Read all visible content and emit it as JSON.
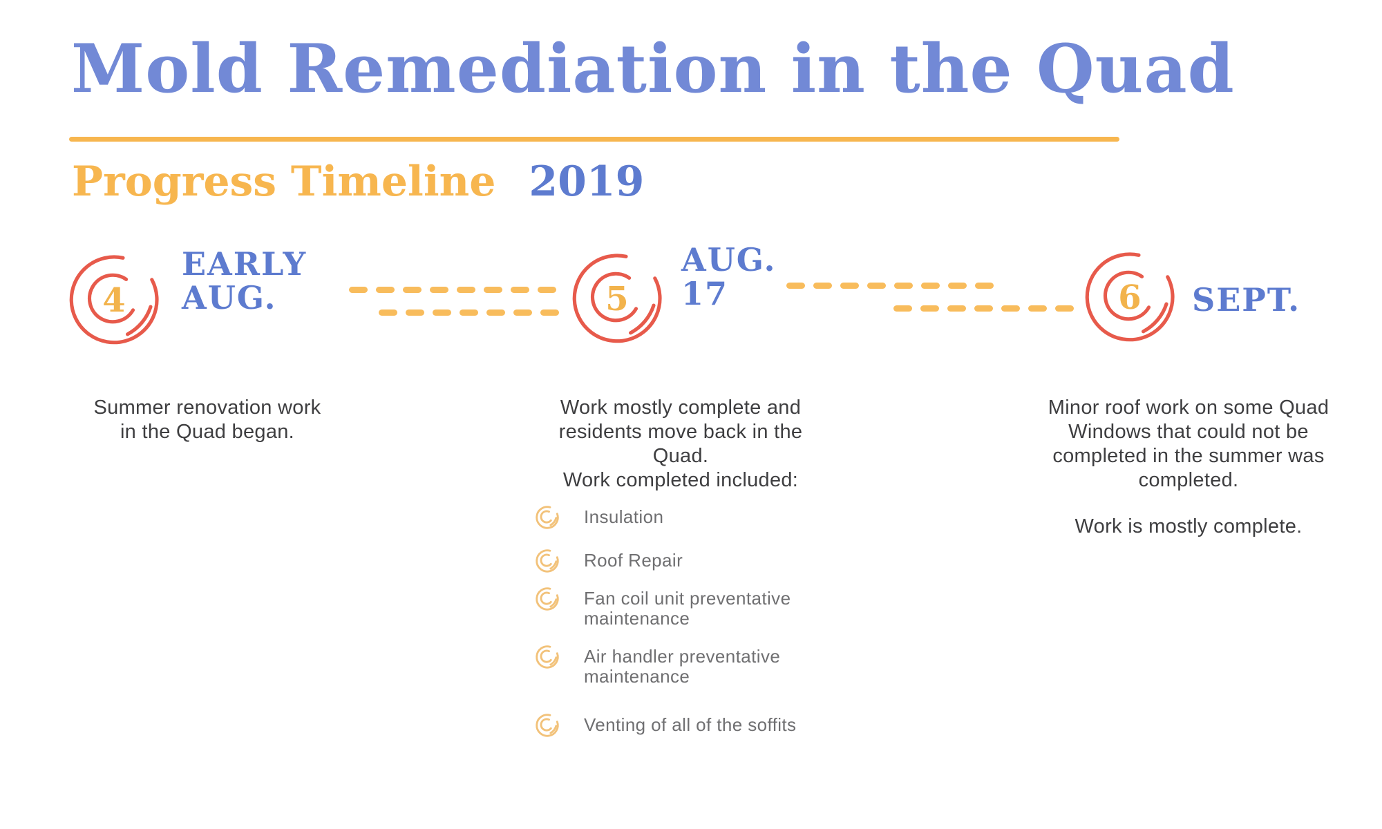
{
  "header": {
    "title": "Mold Remediation in the Quad",
    "subtitle": "Progress Timeline",
    "year": "2019"
  },
  "colors": {
    "blue": "#7289D6",
    "blue-dark": "#5D7BCF",
    "orange": "#F8BC5C",
    "orange-deep": "#F7B64F",
    "orange-light": "#F2C27A",
    "red": "#E75A4B",
    "num-orange": "#F2B34C",
    "text-dark": "#3E3E40",
    "text-gray": "#6F6F71"
  },
  "milestones": [
    {
      "number": "4",
      "label_lines": [
        "EARLY",
        "AUG."
      ],
      "description_lines": [
        "Summer renovation work",
        "in the Quad began."
      ]
    },
    {
      "number": "5",
      "label_lines": [
        "AUG.",
        "17"
      ],
      "description_lines": [
        "Work mostly complete and",
        "residents move back in the Quad.",
        "Work completed included:"
      ],
      "items": [
        {
          "lines": [
            "Insulation"
          ]
        },
        {
          "lines": [
            "Roof Repair"
          ]
        },
        {
          "lines": [
            "Fan coil unit preventative",
            "maintenance"
          ]
        },
        {
          "lines": [
            "Air handler preventative",
            "maintenance"
          ]
        },
        {
          "lines": [
            "Venting of all of the soffits"
          ]
        }
      ]
    },
    {
      "number": "6",
      "label_lines": [
        "SEPT."
      ],
      "description_lines": [
        "Minor roof work on some Quad",
        "Windows that could not be",
        "completed in the summer was",
        "completed."
      ],
      "description2": "Work is mostly complete."
    }
  ]
}
